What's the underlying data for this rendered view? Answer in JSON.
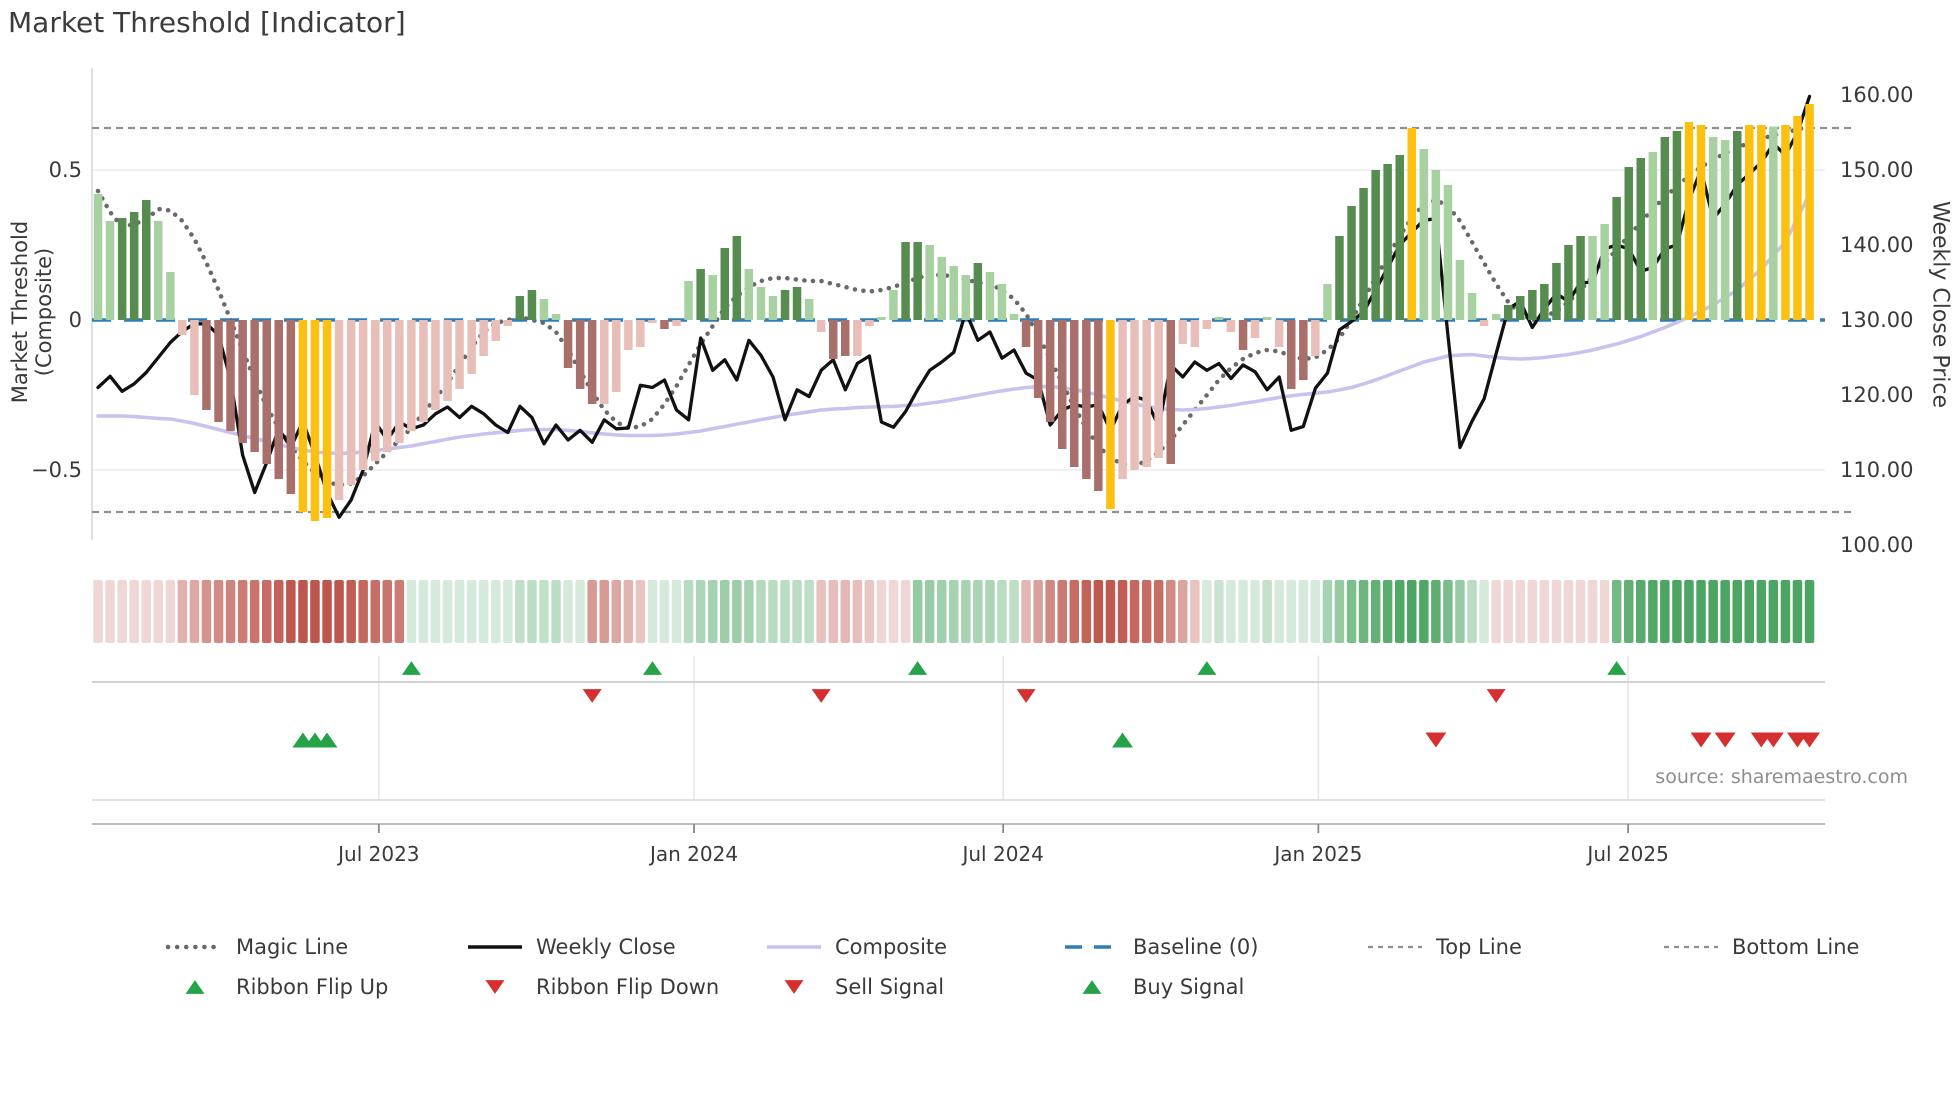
{
  "title": "Market Threshold [Indicator]",
  "source_note": "source: sharemaestro.com",
  "colors": {
    "bar_light_green": "#a8d1a2",
    "bar_dark_green": "#568c50",
    "bar_light_pink": "#e8beb8",
    "bar_dark_red": "#a9706b",
    "bar_gold": "#fcc011",
    "weekly_close_line": "#111111",
    "composite_line": "#c9c2ee",
    "magic_line": "#696969",
    "baseline": "#2e7ebc",
    "threshold_dash": "#8f8f8f",
    "gridline": "#e9ebf2",
    "spine": "#d6d6e0",
    "panel_line": "#cccccc",
    "signal_green": "#26a348",
    "signal_red": "#d62f2f",
    "ribbon_red_base": [
      184,
      73,
      63
    ],
    "ribbon_green_base": [
      62,
      158,
      86
    ]
  },
  "axes": {
    "left_label": "Market Threshold (Composite)",
    "right_label": "Weekly Close Price",
    "left_ticks": [
      {
        "label": "0.5",
        "value": 0.5
      },
      {
        "label": "0",
        "value": 0
      },
      {
        "label": "−0.5",
        "value": -0.5
      }
    ],
    "right_ticks": [
      {
        "label": "160.00",
        "value": 160
      },
      {
        "label": "150.00",
        "value": 150
      },
      {
        "label": "140.00",
        "value": 140
      },
      {
        "label": "130.00",
        "value": 130
      },
      {
        "label": "120.00",
        "value": 120
      },
      {
        "label": "110.00",
        "value": 110
      },
      {
        "label": "100.00",
        "value": 100
      }
    ],
    "x_ticks": [
      {
        "label": "Jul 2023",
        "week": 23.3
      },
      {
        "label": "Jan 2024",
        "week": 49.45
      },
      {
        "label": "Jul 2024",
        "week": 75.1
      },
      {
        "label": "Jan 2025",
        "week": 101.25
      },
      {
        "label": "Jul 2025",
        "week": 126.95
      }
    ]
  },
  "legend": {
    "row1": [
      {
        "label": "Magic Line",
        "swatch": "dotted-gray"
      },
      {
        "label": "Weekly Close",
        "swatch": "solid-black"
      },
      {
        "label": "Composite",
        "swatch": "solid-lavender"
      },
      {
        "label": "Baseline (0)",
        "swatch": "dashed-blue"
      },
      {
        "label": "Top Line",
        "swatch": "smalldash-gray"
      },
      {
        "label": "Bottom Line",
        "swatch": "smalldash-gray"
      }
    ],
    "row2": [
      {
        "label": "Ribbon Flip Up",
        "marker": "triangle-up",
        "color": "green"
      },
      {
        "label": "Ribbon Flip Down",
        "marker": "triangle-down",
        "color": "red"
      },
      {
        "label": "Sell Signal",
        "marker": "triangle-down",
        "color": "red"
      },
      {
        "label": "Buy Signal",
        "marker": "triangle-up",
        "color": "green"
      }
    ]
  },
  "chart_data": {
    "type": "bar",
    "subtype": "bar+line combo with signal ribbon",
    "x_unit": "weekly (approx. Feb 2023 – Oct 2025)",
    "n_weeks": 143,
    "baseline": 0,
    "top_line": 0.64,
    "bottom_line": -0.64,
    "left_axis_range": [
      -0.84,
      0.84
    ],
    "right_axis_range": [
      98,
      163
    ],
    "grid_values_left": [
      0.5,
      -0.5
    ],
    "threshold_bars": {
      "name": "Market Threshold (Composite) histogram",
      "values": [
        0.42,
        0.33,
        0.34,
        0.36,
        0.4,
        0.33,
        0.16,
        -0.05,
        -0.25,
        -0.3,
        -0.34,
        -0.37,
        -0.41,
        -0.44,
        -0.48,
        -0.53,
        -0.58,
        -0.64,
        -0.67,
        -0.66,
        -0.6,
        -0.55,
        -0.5,
        -0.47,
        -0.44,
        -0.41,
        -0.37,
        -0.34,
        -0.3,
        -0.27,
        -0.23,
        -0.18,
        -0.12,
        -0.07,
        -0.02,
        0.08,
        0.1,
        0.07,
        0.02,
        -0.16,
        -0.23,
        -0.28,
        -0.28,
        -0.24,
        -0.1,
        -0.09,
        -0.01,
        -0.03,
        -0.02,
        0.13,
        0.17,
        0.15,
        0.24,
        0.28,
        0.17,
        0.11,
        0.08,
        0.1,
        0.11,
        0.07,
        -0.04,
        -0.13,
        -0.12,
        -0.12,
        -0.02,
        0.01,
        0.1,
        0.26,
        0.26,
        0.25,
        0.21,
        0.18,
        0.15,
        0.19,
        0.16,
        0.12,
        0.02,
        -0.09,
        -0.26,
        -0.34,
        -0.43,
        -0.49,
        -0.53,
        -0.57,
        -0.63,
        -0.53,
        -0.5,
        -0.49,
        -0.46,
        -0.48,
        -0.08,
        -0.09,
        -0.03,
        0.01,
        -0.04,
        -0.1,
        -0.06,
        0.01,
        -0.09,
        -0.23,
        -0.2,
        -0.12,
        0.12,
        0.28,
        0.38,
        0.44,
        0.5,
        0.52,
        0.55,
        0.64,
        0.57,
        0.5,
        0.45,
        0.2,
        0.09,
        -0.02,
        0.02,
        0.05,
        0.08,
        0.1,
        0.12,
        0.19,
        0.25,
        0.28,
        0.28,
        0.32,
        0.41,
        0.51,
        0.54,
        0.56,
        0.61,
        0.63,
        0.66,
        0.65,
        0.61,
        0.6,
        0.63,
        0.65,
        0.65,
        0.645,
        0.65,
        0.68,
        0.72
      ],
      "shades": [
        "lg",
        "lg",
        "dg",
        "dg",
        "dg",
        "lg",
        "lg",
        "lp",
        "lp",
        "dp",
        "dp",
        "dp",
        "dp",
        "dp",
        "dp",
        "dp",
        "dp",
        "au",
        "au",
        "au",
        "lp",
        "lp",
        "lp",
        "lp",
        "lp",
        "lp",
        "lp",
        "lp",
        "lp",
        "lp",
        "lp",
        "lp",
        "lp",
        "lp",
        "lp",
        "dg",
        "dg",
        "lg",
        "lg",
        "dp",
        "dp",
        "dp",
        "lp",
        "lp",
        "lp",
        "lp",
        "lp",
        "dp",
        "lp",
        "lg",
        "dg",
        "lg",
        "dg",
        "dg",
        "lg",
        "lg",
        "lg",
        "dg",
        "dg",
        "lg",
        "lp",
        "dp",
        "dp",
        "lp",
        "lp",
        "lg",
        "lg",
        "dg",
        "dg",
        "lg",
        "lg",
        "lg",
        "lg",
        "dg",
        "lg",
        "lg",
        "lg",
        "dp",
        "dp",
        "dp",
        "dp",
        "dp",
        "dp",
        "dp",
        "au",
        "lp",
        "lp",
        "lp",
        "lp",
        "dp",
        "lp",
        "lp",
        "lp",
        "lg",
        "lp",
        "dp",
        "lp",
        "lg",
        "lp",
        "dp",
        "dp",
        "lp",
        "lg",
        "dg",
        "dg",
        "dg",
        "dg",
        "dg",
        "dg",
        "au",
        "lg",
        "lg",
        "lg",
        "lg",
        "lg",
        "lp",
        "lg",
        "dg",
        "dg",
        "dg",
        "dg",
        "dg",
        "dg",
        "dg",
        "lg",
        "lg",
        "dg",
        "dg",
        "dg",
        "lg",
        "dg",
        "dg",
        "au",
        "au",
        "lg",
        "lg",
        "dg",
        "au",
        "au",
        "lg",
        "au",
        "au",
        "au"
      ],
      "shade_legend": {
        "lg": "light green",
        "dg": "dark green",
        "lp": "light pink",
        "dp": "dark red",
        "au": "gold (threshold cross)"
      }
    },
    "weekly_close": [
      121,
      122.5,
      120.5,
      121.5,
      123,
      125,
      127,
      128.5,
      129.5,
      129.5,
      128,
      122,
      112,
      107,
      111,
      115.5,
      113,
      116.5,
      112,
      107,
      103.7,
      106,
      110,
      116.4,
      114,
      116.4,
      115.5,
      116,
      117.5,
      118.4,
      117,
      118.5,
      117.5,
      116,
      115,
      118.5,
      117,
      113.5,
      116,
      114,
      115.3,
      113.7,
      116.7,
      115.5,
      115.6,
      121.3,
      121,
      122,
      118,
      116.7,
      127.6,
      123.3,
      124.7,
      122,
      127.3,
      125.3,
      122.4,
      116.7,
      120.7,
      119.8,
      123.3,
      124.7,
      120.7,
      124.2,
      125.2,
      116.4,
      115.7,
      117.8,
      120.7,
      123.3,
      124.4,
      125.7,
      131.1,
      127.3,
      128.4,
      124.9,
      126,
      122.9,
      122,
      116,
      118,
      118.7,
      118.4,
      118.7,
      115.3,
      118.7,
      119.8,
      119.3,
      115.8,
      124,
      122.4,
      124.4,
      123.3,
      124.2,
      122.2,
      124,
      123.1,
      120.7,
      122.4,
      115.3,
      115.8,
      120.9,
      122.9,
      128.7,
      129.8,
      131.1,
      134,
      137,
      140,
      141.7,
      143.3,
      143.5,
      128,
      113,
      116.5,
      119.5,
      125.5,
      131.5,
      132.5,
      129,
      131.5,
      133.5,
      132.5,
      135,
      135,
      139.5,
      140,
      139.5,
      136.5,
      137,
      139.5,
      140,
      146,
      150,
      143.5,
      145.5,
      148,
      149.5,
      151,
      153.5,
      152,
      155,
      159.8
    ],
    "composite": [
      -0.32,
      -0.32,
      -0.32,
      -0.322,
      -0.325,
      -0.328,
      -0.33,
      -0.337,
      -0.345,
      -0.355,
      -0.365,
      -0.375,
      -0.385,
      -0.395,
      -0.405,
      -0.415,
      -0.425,
      -0.433,
      -0.44,
      -0.443,
      -0.445,
      -0.443,
      -0.44,
      -0.435,
      -0.43,
      -0.425,
      -0.42,
      -0.412,
      -0.405,
      -0.397,
      -0.39,
      -0.385,
      -0.38,
      -0.376,
      -0.372,
      -0.368,
      -0.365,
      -0.365,
      -0.365,
      -0.368,
      -0.372,
      -0.376,
      -0.38,
      -0.383,
      -0.385,
      -0.385,
      -0.385,
      -0.383,
      -0.38,
      -0.375,
      -0.37,
      -0.362,
      -0.355,
      -0.347,
      -0.34,
      -0.332,
      -0.325,
      -0.318,
      -0.312,
      -0.306,
      -0.3,
      -0.297,
      -0.295,
      -0.292,
      -0.29,
      -0.289,
      -0.288,
      -0.285,
      -0.283,
      -0.277,
      -0.272,
      -0.265,
      -0.258,
      -0.25,
      -0.243,
      -0.236,
      -0.23,
      -0.225,
      -0.222,
      -0.222,
      -0.225,
      -0.232,
      -0.24,
      -0.25,
      -0.26,
      -0.27,
      -0.28,
      -0.288,
      -0.295,
      -0.298,
      -0.3,
      -0.298,
      -0.295,
      -0.29,
      -0.285,
      -0.278,
      -0.272,
      -0.265,
      -0.258,
      -0.253,
      -0.248,
      -0.244,
      -0.24,
      -0.233,
      -0.225,
      -0.213,
      -0.2,
      -0.185,
      -0.17,
      -0.155,
      -0.14,
      -0.13,
      -0.12,
      -0.117,
      -0.115,
      -0.12,
      -0.125,
      -0.128,
      -0.13,
      -0.128,
      -0.125,
      -0.12,
      -0.115,
      -0.108,
      -0.1,
      -0.09,
      -0.08,
      -0.068,
      -0.055,
      -0.04,
      -0.025,
      -0.008,
      0.01,
      0.03,
      0.05,
      0.075,
      0.1,
      0.135,
      0.17,
      0.215,
      0.26,
      0.34,
      0.42
    ],
    "magic_line": [
      0.43,
      0.36,
      0.31,
      0.32,
      0.335,
      0.37,
      0.365,
      0.33,
      0.27,
      0.19,
      0.1,
      0.0,
      -0.1,
      -0.2,
      -0.29,
      -0.36,
      -0.42,
      -0.47,
      -0.51,
      -0.54,
      -0.55,
      -0.545,
      -0.52,
      -0.48,
      -0.44,
      -0.4,
      -0.36,
      -0.31,
      -0.26,
      -0.21,
      -0.15,
      -0.09,
      -0.04,
      -0.01,
      0.0,
      0.01,
      0.0,
      -0.01,
      -0.04,
      -0.1,
      -0.17,
      -0.24,
      -0.3,
      -0.34,
      -0.36,
      -0.355,
      -0.33,
      -0.28,
      -0.22,
      -0.15,
      -0.08,
      -0.02,
      0.04,
      0.08,
      0.11,
      0.13,
      0.14,
      0.14,
      0.135,
      0.13,
      0.13,
      0.12,
      0.11,
      0.1,
      0.095,
      0.1,
      0.11,
      0.125,
      0.14,
      0.15,
      0.15,
      0.145,
      0.135,
      0.125,
      0.12,
      0.1,
      0.07,
      0.02,
      -0.05,
      -0.13,
      -0.21,
      -0.29,
      -0.36,
      -0.42,
      -0.46,
      -0.48,
      -0.485,
      -0.47,
      -0.44,
      -0.4,
      -0.35,
      -0.3,
      -0.25,
      -0.2,
      -0.16,
      -0.13,
      -0.11,
      -0.1,
      -0.105,
      -0.12,
      -0.13,
      -0.125,
      -0.1,
      -0.06,
      0.0,
      0.07,
      0.14,
      0.21,
      0.28,
      0.34,
      0.385,
      0.4,
      0.38,
      0.33,
      0.26,
      0.19,
      0.12,
      0.06,
      0.02,
      0.0,
      0.01,
      0.03,
      0.06,
      0.1,
      0.145,
      0.19,
      0.235,
      0.28,
      0.325,
      0.37,
      0.41,
      0.445,
      0.48,
      0.51,
      0.535,
      0.555,
      0.575,
      0.59,
      0.605,
      0.615,
      0.625,
      0.635,
      0.645
    ],
    "ribbon_segments": [
      {
        "from": 0,
        "to": 25,
        "direction": "bearish"
      },
      {
        "from": 26,
        "to": 40,
        "direction": "bullish"
      },
      {
        "from": 41,
        "to": 45,
        "direction": "bearish"
      },
      {
        "from": 46,
        "to": 59,
        "direction": "bullish"
      },
      {
        "from": 60,
        "to": 67,
        "direction": "bearish"
      },
      {
        "from": 68,
        "to": 76,
        "direction": "bullish"
      },
      {
        "from": 77,
        "to": 91,
        "direction": "bearish"
      },
      {
        "from": 92,
        "to": 115,
        "direction": "bullish"
      },
      {
        "from": 116,
        "to": 125,
        "direction": "bearish"
      },
      {
        "from": 126,
        "to": 142,
        "direction": "bullish"
      }
    ],
    "signals": {
      "ribbon_flip_up_weeks": [
        26,
        46,
        68,
        92,
        126
      ],
      "ribbon_flip_down_weeks": [
        41,
        60,
        77,
        116
      ],
      "buy_weeks": [
        17,
        18,
        19,
        85
      ],
      "sell_weeks": [
        111,
        133,
        135,
        138,
        139,
        141,
        142
      ]
    }
  }
}
